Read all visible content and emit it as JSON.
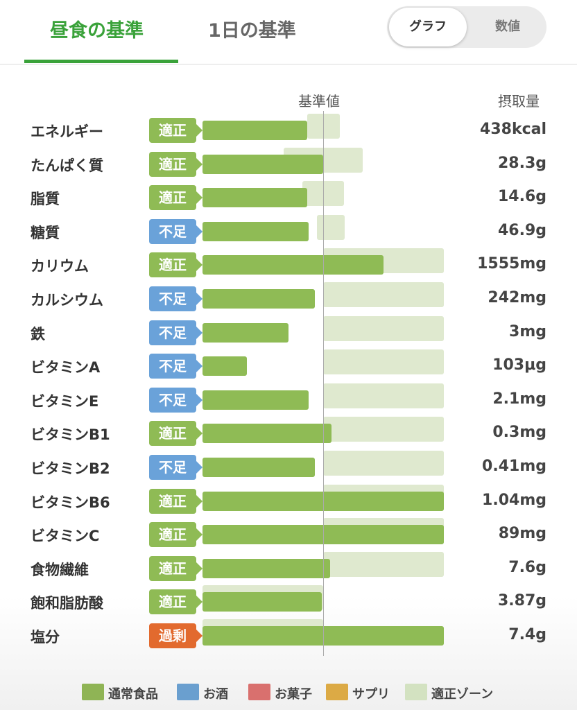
{
  "tabs": {
    "meal": "昼食の基準",
    "day": "1日の基準"
  },
  "toggle": {
    "graph": "グラフ",
    "numbers": "数値"
  },
  "column_headers": {
    "reference": "基準値",
    "intake": "摂取量"
  },
  "colors": {
    "accent": "#3aa23a",
    "bar": "#8fbb55",
    "zone": "#dfe9cf",
    "badge_ok": "#8fbb55",
    "badge_low": "#6aa2d9",
    "badge_high": "#e26a2e"
  },
  "legend": [
    {
      "label": "通常食品",
      "color": "#8fb455"
    },
    {
      "label": "お酒",
      "color": "#6a9fcf"
    },
    {
      "label": "お菓子",
      "color": "#d9706e"
    },
    {
      "label": "サプリ",
      "color": "#dcaa45"
    },
    {
      "label": "適正ゾーン",
      "color": "#d3e2c1"
    }
  ],
  "chart_data": {
    "type": "bar",
    "orientation": "horizontal",
    "unit": "percent of reference value",
    "xlim": [
      0,
      200
    ],
    "reference_value": 100,
    "categories": [
      "エネルギー",
      "たんぱく質",
      "脂質",
      "糖質",
      "カリウム",
      "カルシウム",
      "鉄",
      "ビタミンA",
      "ビタミンE",
      "ビタミンB1",
      "ビタミンB2",
      "ビタミンB6",
      "ビタミンC",
      "食物繊維",
      "飽和脂肪酸",
      "塩分"
    ],
    "values": [
      87,
      100,
      87,
      88,
      150,
      93,
      71,
      37,
      88,
      107,
      93,
      200,
      200,
      106,
      99,
      200
    ],
    "optimal_zone": [
      [
        87,
        114
      ],
      [
        67,
        133
      ],
      [
        83,
        117
      ],
      [
        95,
        118
      ],
      [
        100,
        200
      ],
      [
        100,
        200
      ],
      [
        100,
        200
      ],
      [
        100,
        200
      ],
      [
        100,
        200
      ],
      [
        100,
        200
      ],
      [
        100,
        200
      ],
      [
        100,
        200
      ],
      [
        100,
        200
      ],
      [
        100,
        200
      ],
      [
        0,
        100
      ],
      [
        0,
        100
      ]
    ],
    "status": [
      "適正",
      "適正",
      "適正",
      "不足",
      "適正",
      "不足",
      "不足",
      "不足",
      "不足",
      "適正",
      "不足",
      "適正",
      "適正",
      "適正",
      "適正",
      "過剰"
    ],
    "status_kind": [
      "ok",
      "ok",
      "ok",
      "low",
      "ok",
      "low",
      "low",
      "low",
      "low",
      "ok",
      "low",
      "ok",
      "ok",
      "ok",
      "ok",
      "high"
    ],
    "intake": [
      "438kcal",
      "28.3g",
      "14.6g",
      "46.9g",
      "1555mg",
      "242mg",
      "3mg",
      "103μg",
      "2.1mg",
      "0.3mg",
      "0.41mg",
      "1.04mg",
      "89mg",
      "7.6g",
      "3.87g",
      "7.4g"
    ]
  }
}
